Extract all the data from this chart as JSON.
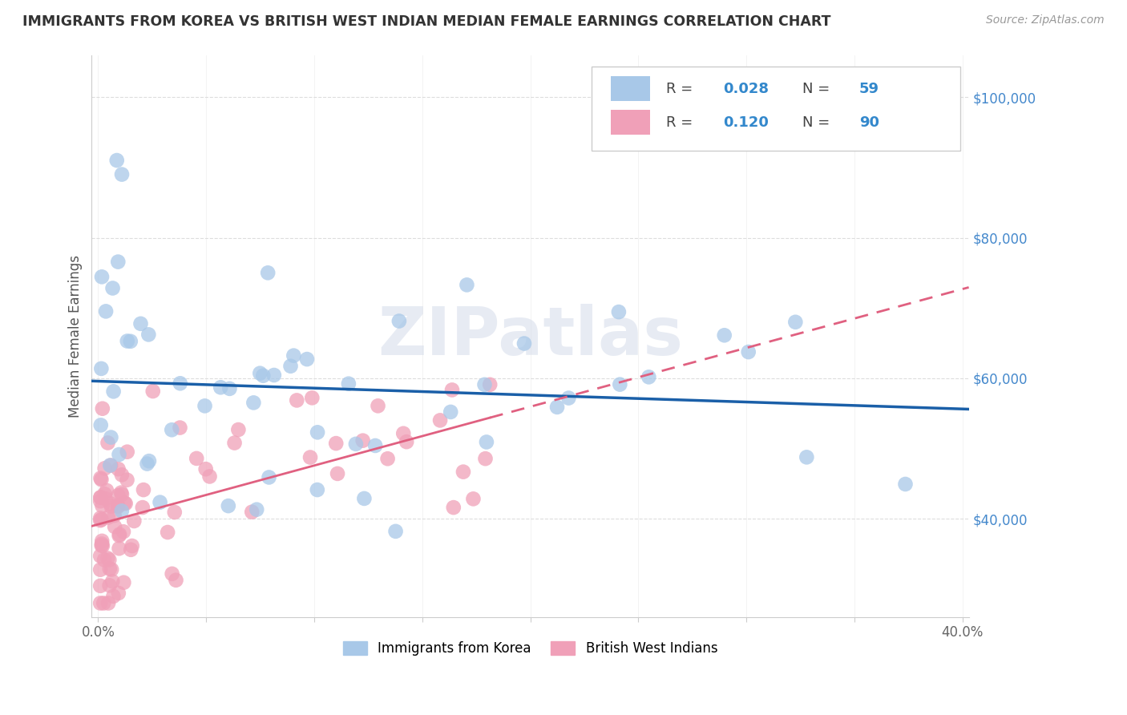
{
  "title": "IMMIGRANTS FROM KOREA VS BRITISH WEST INDIAN MEDIAN FEMALE EARNINGS CORRELATION CHART",
  "source": "Source: ZipAtlas.com",
  "ylabel": "Median Female Earnings",
  "ytick_labels": [
    "$40,000",
    "$60,000",
    "$80,000",
    "$100,000"
  ],
  "ytick_values": [
    40000,
    60000,
    80000,
    100000
  ],
  "ymin": 26000,
  "ymax": 106000,
  "xmin": -0.003,
  "xmax": 0.403,
  "legend_korea_R": "0.028",
  "legend_korea_N": "59",
  "legend_bwi_R": "0.120",
  "legend_bwi_N": "90",
  "watermark": "ZIPatlas",
  "blue_color": "#a8c8e8",
  "pink_color": "#f0a0b8",
  "blue_line_color": "#1a5fa8",
  "pink_line_color": "#e06080",
  "title_color": "#333333",
  "source_color": "#999999",
  "ytick_color": "#4488cc",
  "xtick_color": "#666666",
  "grid_color": "#dddddd",
  "legend_border_color": "#cccccc"
}
